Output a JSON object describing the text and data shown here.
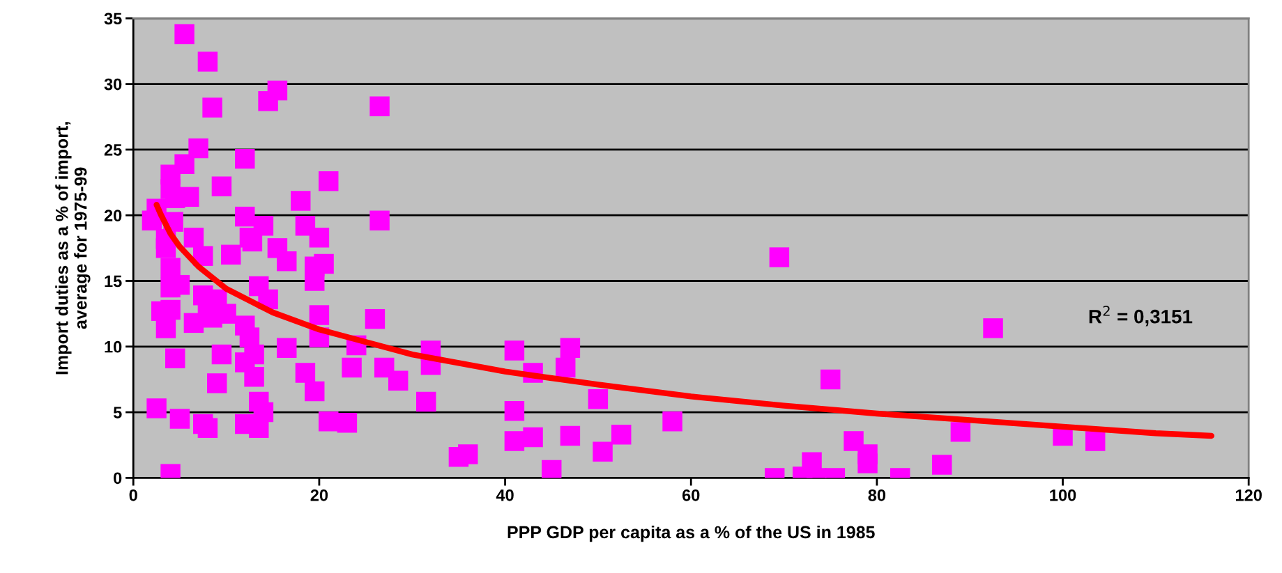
{
  "chart_data": {
    "type": "scatter",
    "xlabel": "PPP GDP per capita as a % of the US in 1985",
    "ylabel": "Import duties as a % of import,\naverage for 1975-99",
    "xlim": [
      0,
      120
    ],
    "xticks": [
      0,
      20,
      40,
      60,
      80,
      100,
      120
    ],
    "ylim": [
      0,
      35
    ],
    "yticks": [
      0,
      5,
      10,
      15,
      20,
      25,
      30,
      35
    ],
    "grid": "y",
    "annotations": [
      "R$^{2}$ = 0,3151"
    ],
    "series": [
      {
        "marker": "square",
        "color": "#ff00ff",
        "x": [
          5.5,
          8,
          8.5,
          15.5,
          14.5,
          26.5,
          7,
          5.5,
          12,
          4,
          4,
          9.5,
          21,
          2.5,
          2,
          6,
          4.5,
          3.5,
          4.3,
          3.5,
          26.5,
          18,
          12,
          14,
          18.5,
          6.5,
          12.5,
          20,
          12.8,
          15.5,
          7.5,
          10.5,
          16.5,
          20.5,
          19.5,
          4,
          4,
          5,
          19.5,
          7.5,
          8,
          13.5,
          14.5,
          9,
          10,
          8.5,
          3,
          4,
          3.5,
          6.5,
          20,
          26,
          12,
          12.5,
          20,
          16.5,
          13,
          9.5,
          12,
          24,
          4.5,
          9,
          13,
          18.5,
          19.5,
          23.5,
          27,
          28.5,
          32,
          32,
          31.5,
          13.5,
          14,
          2.5,
          5,
          7.5,
          8,
          12,
          13.5,
          21,
          23,
          4,
          41,
          41,
          41,
          43,
          43,
          46.5,
          47,
          47,
          50,
          50.5,
          52.5,
          45,
          35,
          36,
          58,
          69.5,
          69,
          72,
          73,
          73.5,
          75.5,
          75,
          77.5,
          79,
          79,
          82.5,
          87,
          89,
          92.5,
          100,
          103.5
        ],
        "values": [
          33.8,
          31.7,
          28.2,
          29.5,
          28.7,
          28.3,
          25.1,
          23.9,
          24.3,
          23.1,
          22,
          22.2,
          22.6,
          20.5,
          19.6,
          21.4,
          21.3,
          18.2,
          19.5,
          17.5,
          19.6,
          21.1,
          19.9,
          19.2,
          19.2,
          18.3,
          18.3,
          18.3,
          18,
          17.5,
          16.9,
          17,
          16.5,
          16.3,
          16.1,
          16,
          14.5,
          14.7,
          15,
          13.9,
          13.1,
          14.6,
          13.6,
          13.6,
          12.5,
          12.2,
          12.7,
          12.8,
          11.4,
          11.8,
          12.4,
          12.1,
          11.6,
          10.7,
          10.7,
          9.9,
          9.4,
          9.4,
          8.8,
          10.1,
          9.1,
          7.2,
          7.7,
          8,
          6.6,
          8.4,
          8.4,
          7.4,
          9.7,
          8.6,
          5.8,
          5.8,
          5,
          5.3,
          4.5,
          4.1,
          3.8,
          4.1,
          3.8,
          4.3,
          4.2,
          0.3,
          9.7,
          5.1,
          2.8,
          3.1,
          8,
          8.4,
          9.9,
          3.2,
          6,
          2,
          3.3,
          0.6,
          1.6,
          1.8,
          4.3,
          16.8,
          0,
          0.1,
          1.2,
          0,
          0,
          7.5,
          2.8,
          1.8,
          1.1,
          0,
          1,
          3.5,
          11.4,
          3.2,
          2.8
        ]
      },
      {
        "type": "line",
        "marker": "none",
        "color": "#ff0000",
        "x": [
          2.5,
          3,
          4,
          5,
          7,
          10,
          15,
          20,
          30,
          40,
          50,
          60,
          70,
          80,
          90,
          100,
          110,
          116
        ],
        "values": [
          20.8,
          20.0,
          18.6,
          17.6,
          16.1,
          14.4,
          12.6,
          11.3,
          9.4,
          8.1,
          7.1,
          6.2,
          5.5,
          4.9,
          4.4,
          3.9,
          3.4,
          3.2
        ]
      }
    ]
  }
}
